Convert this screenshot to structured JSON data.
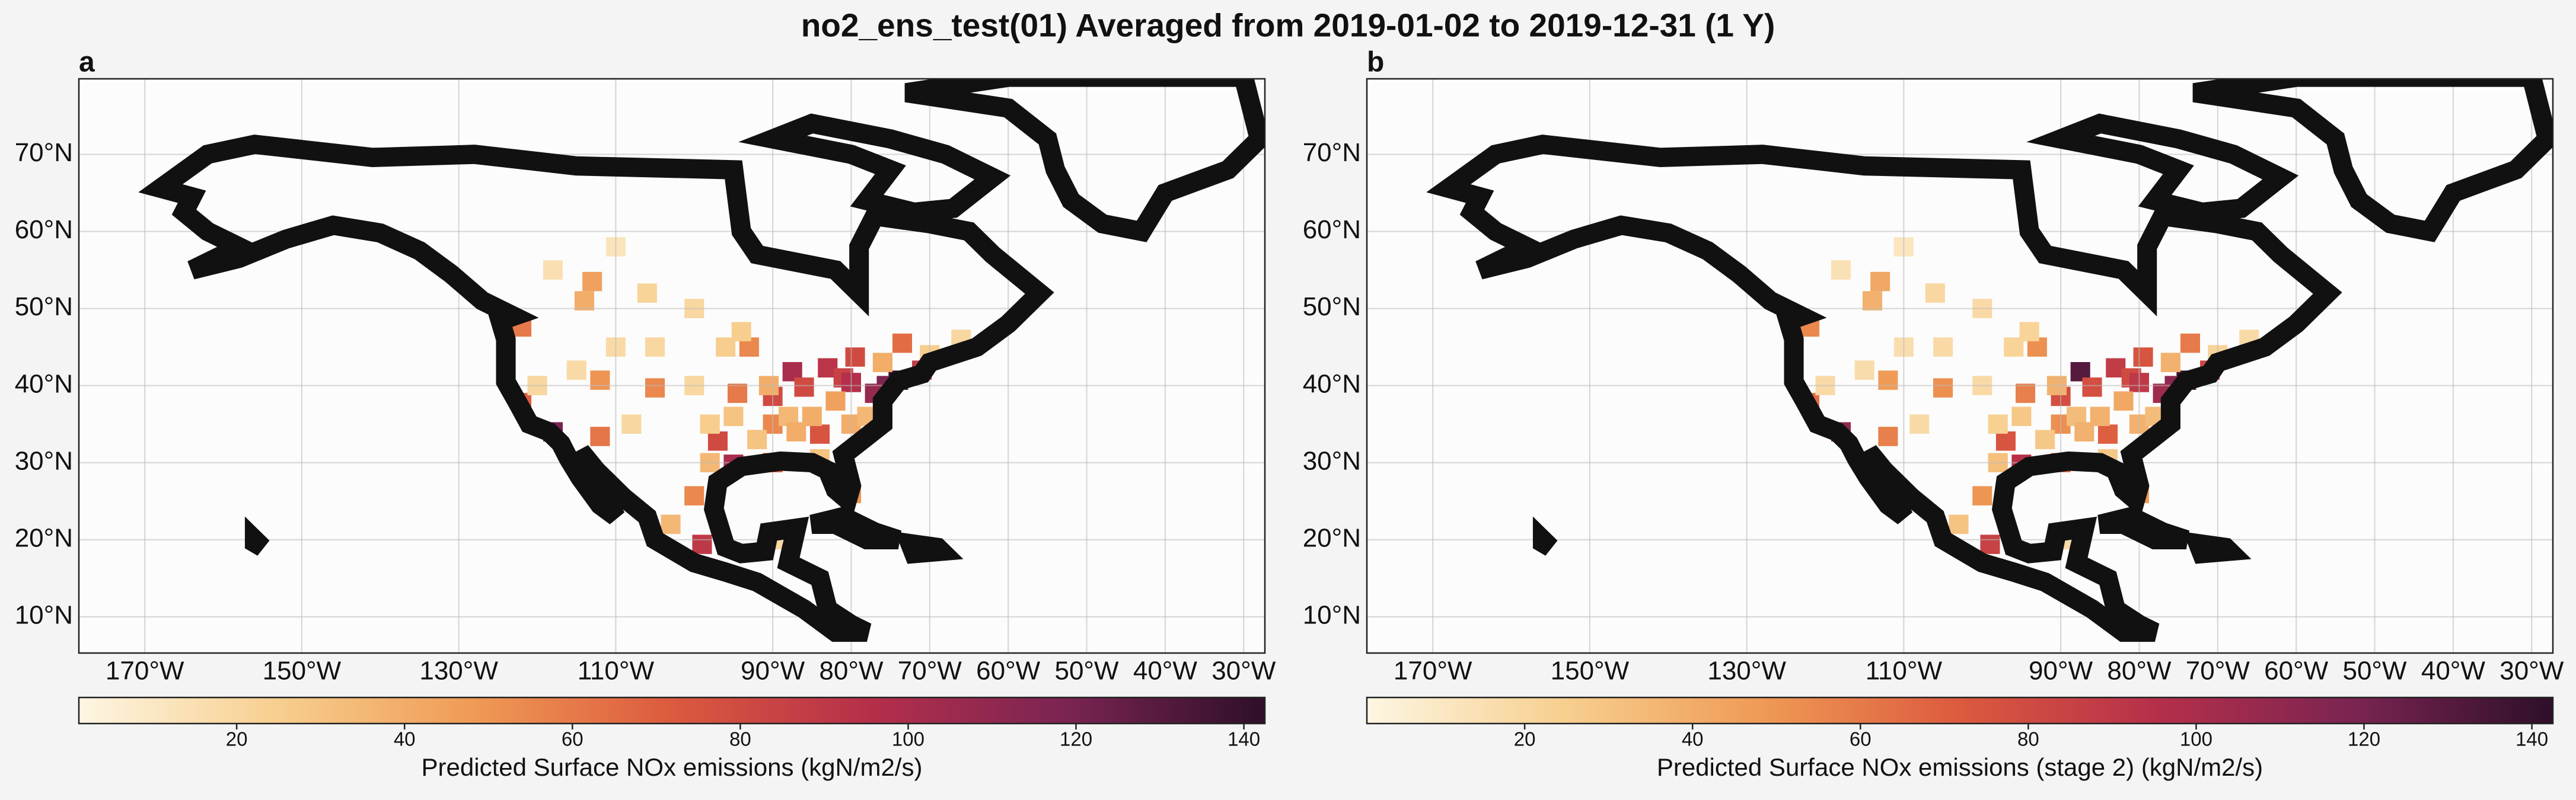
{
  "title": "no2_ens_test(01) Averaged from 2019-01-02 to 2019-12-31 (1 Y)",
  "chart_data": [
    {
      "type": "map",
      "panel_label": "a",
      "xlim": [
        -178.4,
        -27.3
      ],
      "ylim": [
        5.3,
        79.8
      ],
      "xticks": [
        {
          "value": -170,
          "label": "170°W"
        },
        {
          "value": -150,
          "label": "150°W"
        },
        {
          "value": -130,
          "label": "130°W"
        },
        {
          "value": -110,
          "label": "110°W"
        },
        {
          "value": -90,
          "label": "90°W"
        },
        {
          "value": -80,
          "label": "80°W"
        },
        {
          "value": -70,
          "label": "70°W"
        },
        {
          "value": -60,
          "label": "60°W"
        },
        {
          "value": -50,
          "label": "50°W"
        },
        {
          "value": -40,
          "label": "40°W"
        },
        {
          "value": -30,
          "label": "30°W"
        }
      ],
      "yticks": [
        {
          "value": 10,
          "label": "10°N"
        },
        {
          "value": 20,
          "label": "20°N"
        },
        {
          "value": 30,
          "label": "30°N"
        },
        {
          "value": 40,
          "label": "40°N"
        },
        {
          "value": 50,
          "label": "50°N"
        },
        {
          "value": 60,
          "label": "60°N"
        },
        {
          "value": 70,
          "label": "70°N"
        }
      ],
      "grid": true,
      "colorbar": {
        "lim": [
          1.2,
          142.5
        ],
        "ticks": [
          20,
          40,
          60,
          80,
          100,
          120,
          140
        ],
        "label": "Predicted Surface NOx emissions (kgN/m2/s)",
        "colors": [
          "#fdf6e3",
          "#f7cf8f",
          "#ef9a55",
          "#dc5a3e",
          "#b52f4a",
          "#7a2452",
          "#2e0f2a"
        ]
      },
      "cells": {
        "lon": [
          -74,
          -75.5,
          -77,
          -71,
          -87.5,
          -83,
          -81,
          -80,
          -86,
          -84,
          -95,
          -97,
          -118,
          -122,
          -122,
          -105,
          -112,
          -99,
          -100,
          -112,
          -82,
          -80,
          -114,
          -113,
          -79.5,
          -73.5,
          -90,
          -94.5,
          -93,
          -90,
          -90,
          -85,
          -88,
          -80,
          -78,
          -82,
          -90.5,
          -95,
          -98,
          -100,
          -105,
          -110,
          -115,
          -120,
          -108,
          -98,
          -87,
          -92,
          -84,
          -76,
          -70,
          -96,
          -100,
          -106,
          -118,
          -110,
          -66,
          -103,
          -90,
          -94
        ],
        "lat": [
          40.7,
          40,
          39,
          42,
          41.8,
          42.3,
          41,
          40.4,
          39.8,
          33.7,
          29.8,
          32.8,
          34,
          37.8,
          47.6,
          39.7,
          33.4,
          19.4,
          25.7,
          40.7,
          28,
          26,
          51,
          53.5,
          43.7,
          45.5,
          38.6,
          39,
          45,
          35,
          30,
          36,
          36,
          35,
          36,
          38,
          40,
          36,
          35,
          40,
          45,
          45,
          42,
          40,
          35,
          30,
          34,
          33,
          30.5,
          43,
          44,
          45,
          50,
          52,
          55,
          58,
          46,
          22,
          20,
          47
        ],
        "values": [
          140,
          118,
          108,
          88,
          100,
          92,
          85,
          96,
          80,
          75,
          100,
          80,
          120,
          70,
          60,
          55,
          62,
          90,
          55,
          50,
          55,
          50,
          40,
          45,
          80,
          65,
          80,
          60,
          55,
          55,
          70,
          40,
          35,
          40,
          35,
          45,
          40,
          30,
          25,
          20,
          20,
          18,
          18,
          20,
          20,
          35,
          40,
          30,
          30,
          40,
          25,
          25,
          20,
          22,
          15,
          12,
          20,
          35,
          20,
          25
        ]
      }
    },
    {
      "type": "map",
      "panel_label": "b",
      "xlim": [
        -178.4,
        -27.3
      ],
      "ylim": [
        5.3,
        79.8
      ],
      "xticks": [
        {
          "value": -170,
          "label": "170°W"
        },
        {
          "value": -150,
          "label": "150°W"
        },
        {
          "value": -130,
          "label": "130°W"
        },
        {
          "value": -110,
          "label": "110°W"
        },
        {
          "value": -90,
          "label": "90°W"
        },
        {
          "value": -80,
          "label": "80°W"
        },
        {
          "value": -70,
          "label": "70°W"
        },
        {
          "value": -60,
          "label": "60°W"
        },
        {
          "value": -50,
          "label": "50°W"
        },
        {
          "value": -40,
          "label": "40°W"
        },
        {
          "value": -30,
          "label": "30°W"
        }
      ],
      "yticks": [
        {
          "value": 10,
          "label": "10°N"
        },
        {
          "value": 20,
          "label": "20°N"
        },
        {
          "value": 30,
          "label": "30°N"
        },
        {
          "value": 40,
          "label": "40°N"
        },
        {
          "value": 50,
          "label": "50°N"
        },
        {
          "value": 60,
          "label": "60°N"
        },
        {
          "value": 70,
          "label": "70°N"
        }
      ],
      "grid": true,
      "colorbar": {
        "lim": [
          1.2,
          142.5
        ],
        "ticks": [
          20,
          40,
          60,
          80,
          100,
          120,
          140
        ],
        "label": "Predicted Surface NOx emissions (stage 2) (kgN/m2/s)",
        "colors": [
          "#fdf6e3",
          "#f7cf8f",
          "#ef9a55",
          "#dc5a3e",
          "#b52f4a",
          "#7a2452",
          "#2e0f2a"
        ]
      },
      "cells": {
        "lon": [
          -74,
          -75.5,
          -77,
          -71,
          -87.5,
          -83,
          -81,
          -80,
          -86,
          -84,
          -95,
          -97,
          -118,
          -122,
          -122,
          -105,
          -112,
          -99,
          -100,
          -112,
          -82,
          -80,
          -114,
          -113,
          -79.5,
          -73.5,
          -90,
          -94.5,
          -93,
          -90,
          -90,
          -85,
          -88,
          -80,
          -78,
          -82,
          -90.5,
          -95,
          -98,
          -100,
          -105,
          -110,
          -115,
          -120,
          -108,
          -98,
          -87,
          -92,
          -84,
          -76,
          -70,
          -96,
          -100,
          -106,
          -118,
          -110,
          -66,
          -103,
          -90,
          -94
        ],
        "lat": [
          40.7,
          40,
          39,
          42,
          41.8,
          42.3,
          41,
          40.4,
          39.8,
          33.7,
          29.8,
          32.8,
          34,
          37.8,
          47.6,
          39.7,
          33.4,
          19.4,
          25.7,
          40.7,
          28,
          26,
          51,
          53.5,
          43.7,
          45.5,
          38.6,
          39,
          45,
          35,
          30,
          36,
          36,
          35,
          36,
          38,
          40,
          36,
          35,
          40,
          45,
          45,
          42,
          40,
          35,
          30,
          34,
          33,
          30.5,
          43,
          44,
          45,
          50,
          52,
          55,
          58,
          46,
          22,
          20,
          47
        ],
        "values": [
          138,
          112,
          104,
          82,
          130,
          88,
          80,
          90,
          78,
          70,
          95,
          75,
          110,
          65,
          55,
          52,
          58,
          85,
          50,
          48,
          52,
          48,
          38,
          42,
          75,
          60,
          78,
          58,
          52,
          52,
          65,
          38,
          33,
          38,
          33,
          42,
          38,
          28,
          24,
          18,
          18,
          16,
          17,
          18,
          18,
          32,
          38,
          28,
          28,
          38,
          22,
          22,
          18,
          20,
          14,
          11,
          18,
          30,
          18,
          22
        ]
      }
    }
  ]
}
